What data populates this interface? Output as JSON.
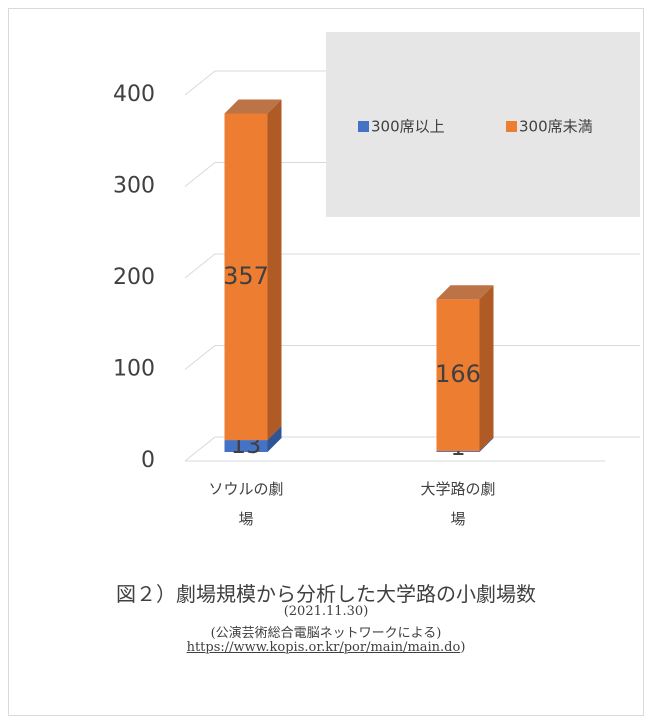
{
  "chart_data": {
    "type": "bar",
    "stacked": true,
    "three_d": true,
    "categories": [
      "ソウルの劇場",
      "大学路の劇場"
    ],
    "series": [
      {
        "name": "300席以上",
        "color": "#4472c4",
        "side_color": "#2f5597",
        "values": [
          13,
          1
        ]
      },
      {
        "name": "300席未満",
        "color": "#ed7d31",
        "side_color": "#b05a26",
        "values": [
          357,
          166
        ]
      }
    ],
    "ylim": [
      0,
      400
    ],
    "yticks": [
      0,
      100,
      200,
      300,
      400
    ],
    "grid": true,
    "legend": "top right",
    "caption": {
      "title": "図２）劇場規模から分析した大学路の小劇場数",
      "date": "(2021.11.30)",
      "source": "(公演芸術総合電脳ネットワークによる)",
      "url": "https://www.kopis.or.kr/por/main/main.do",
      "url_suffix": ")"
    }
  }
}
